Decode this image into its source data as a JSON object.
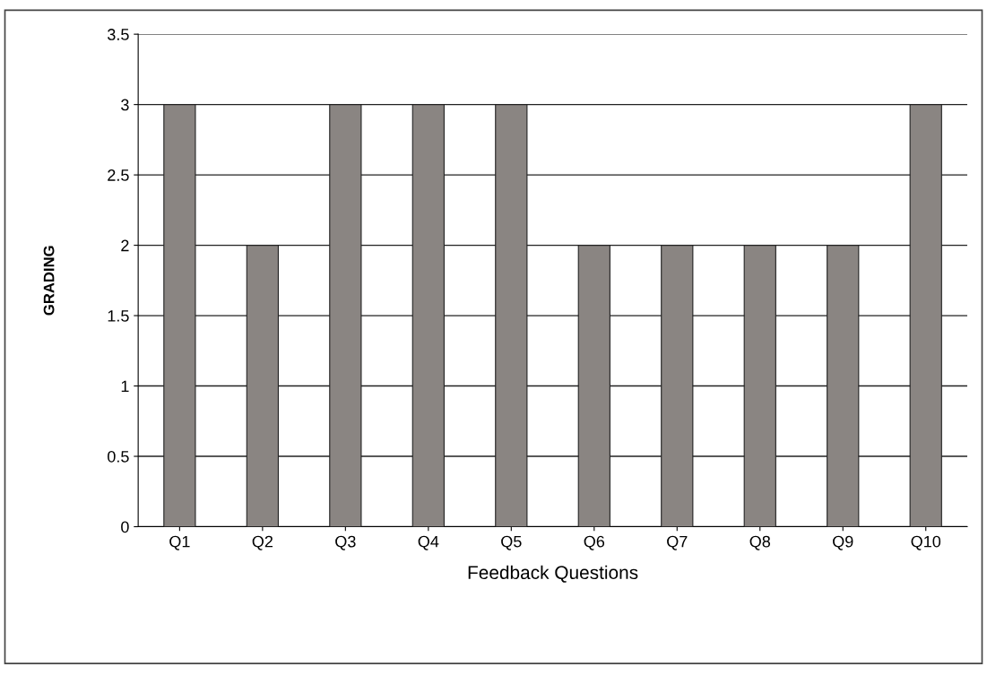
{
  "chart_data": {
    "type": "bar",
    "xlabel": "Feedback Questions",
    "ylabel": "GRADING",
    "categories": [
      "Q1",
      "Q2",
      "Q3",
      "Q4",
      "Q5",
      "Q6",
      "Q7",
      "Q8",
      "Q9",
      "Q10"
    ],
    "values": [
      3,
      2,
      3,
      3,
      3,
      2,
      2,
      2,
      2,
      3
    ],
    "color": "#8a8582",
    "ylim": [
      0,
      3.5
    ],
    "yticks": [
      0,
      0.5,
      1,
      1.5,
      2,
      2.5,
      3,
      3.5
    ],
    "grid": "y"
  }
}
